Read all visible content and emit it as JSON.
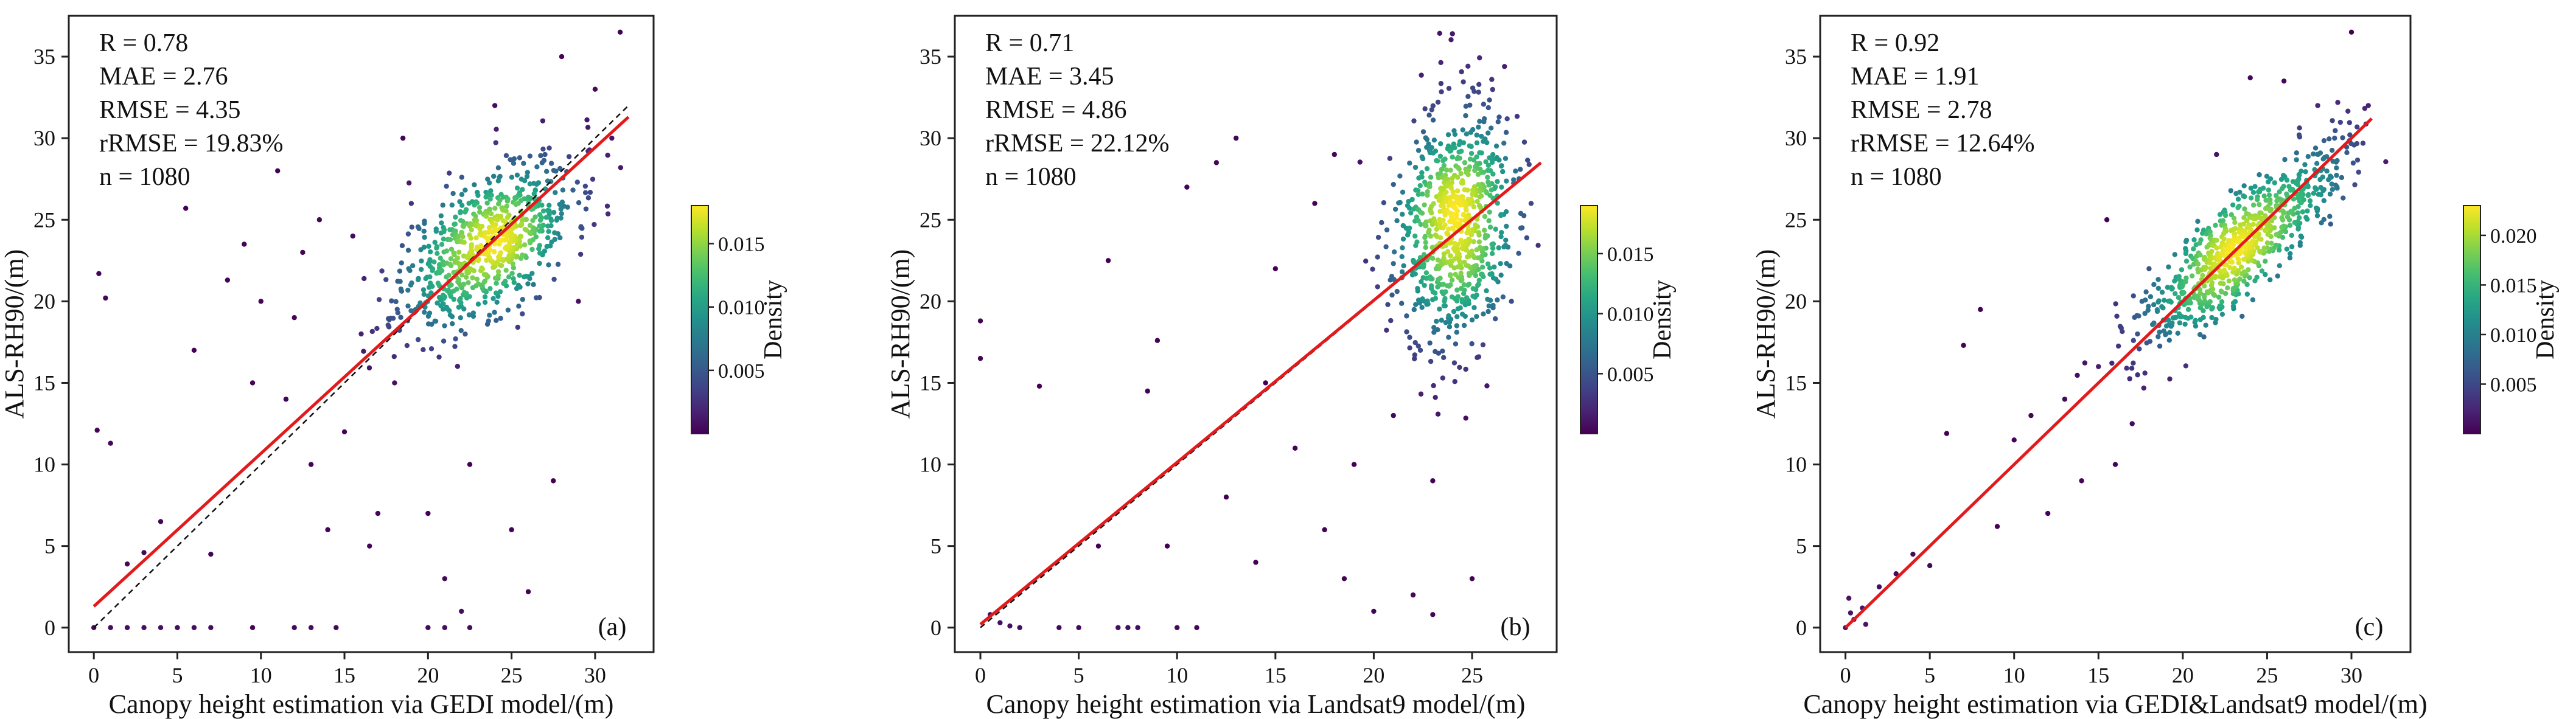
{
  "chart_data": [
    {
      "type": "scatter",
      "panel_label": "(a)",
      "xlabel": "Canopy height estimation via GEDI model/(m)",
      "ylabel": "ALS-RH90/(m)",
      "xlim": [
        -1.5,
        33.5
      ],
      "ylim": [
        -1.5,
        37.5
      ],
      "xticks": [
        0,
        5,
        10,
        15,
        20,
        25,
        30
      ],
      "yticks": [
        0,
        5,
        10,
        15,
        20,
        25,
        30,
        35
      ],
      "stats": [
        "R = 0.78",
        "MAE = 2.76",
        "RMSE = 4.35",
        "rRMSE = 19.83%",
        "n = 1080"
      ],
      "fit_line": {
        "x": [
          0,
          32
        ],
        "y": [
          1.3,
          31.3
        ],
        "color": "#e31a1c"
      },
      "one_to_one_line": {
        "x": [
          0,
          32
        ],
        "y": [
          0,
          32
        ],
        "style": "dashed"
      },
      "cluster": {
        "center": [
          23.5,
          23.5
        ],
        "spread": [
          2.6,
          2.6
        ],
        "corr": 0.55
      },
      "colorbar": {
        "label": "Density",
        "ticks": [
          0.005,
          0.01,
          0.015
        ],
        "tick_labels": [
          "0.005",
          "0.010",
          "0.015"
        ],
        "min": 0.0,
        "max": 0.018
      },
      "sample_points": [
        [
          0,
          0
        ],
        [
          1,
          0
        ],
        [
          2,
          0
        ],
        [
          3,
          0
        ],
        [
          4,
          0
        ],
        [
          5,
          0
        ],
        [
          6,
          0
        ],
        [
          7,
          0
        ],
        [
          9.5,
          0
        ],
        [
          12,
          0
        ],
        [
          13,
          0
        ],
        [
          14.5,
          0
        ],
        [
          20,
          0
        ],
        [
          21,
          0
        ],
        [
          22.5,
          0
        ],
        [
          0.2,
          12.1
        ],
        [
          1,
          11.3
        ],
        [
          0.3,
          21.7
        ],
        [
          0.7,
          20.2
        ],
        [
          2,
          3.9
        ],
        [
          3,
          4.6
        ],
        [
          4,
          6.5
        ],
        [
          5.5,
          25.7
        ],
        [
          6,
          17
        ],
        [
          7,
          4.5
        ],
        [
          8,
          21.3
        ],
        [
          9,
          23.5
        ],
        [
          9.5,
          15
        ],
        [
          10,
          20
        ],
        [
          11,
          28
        ],
        [
          11.5,
          14
        ],
        [
          12,
          19
        ],
        [
          12.5,
          23
        ],
        [
          13,
          10
        ],
        [
          13.5,
          25
        ],
        [
          14,
          6
        ],
        [
          15,
          12
        ],
        [
          15.5,
          24
        ],
        [
          16,
          18
        ],
        [
          16.5,
          5
        ],
        [
          17,
          7
        ],
        [
          18,
          15
        ],
        [
          18.5,
          30
        ],
        [
          19,
          26
        ],
        [
          20,
          7
        ],
        [
          21,
          3
        ],
        [
          22,
          1
        ],
        [
          22.5,
          10
        ],
        [
          24,
          32
        ],
        [
          25,
          6
        ],
        [
          26,
          2.2
        ],
        [
          27,
          29
        ],
        [
          27.5,
          9
        ],
        [
          28,
          35
        ],
        [
          29,
          20
        ],
        [
          30,
          33
        ],
        [
          31,
          30
        ],
        [
          31.5,
          36.5
        ]
      ],
      "n_cluster": 720,
      "seed": 11
    },
    {
      "type": "scatter",
      "panel_label": "(b)",
      "xlabel": "Canopy height estimation via Landsat9 model/(m)",
      "ylabel": "ALS-RH90/(m)",
      "xlim": [
        -1.3,
        29.3
      ],
      "ylim": [
        -1.5,
        37.5
      ],
      "xticks": [
        0,
        5,
        10,
        15,
        20,
        25
      ],
      "yticks": [
        0,
        5,
        10,
        15,
        20,
        25,
        30,
        35
      ],
      "stats": [
        "R = 0.71",
        "MAE = 3.45",
        "RMSE = 4.86",
        "rRMSE = 22.12%",
        "n = 1080"
      ],
      "fit_line": {
        "x": [
          0,
          28.5
        ],
        "y": [
          0.2,
          28.5
        ],
        "color": "#e31a1c"
      },
      "one_to_one_line": {
        "x": [
          0,
          28.5
        ],
        "y": [
          0,
          28.5
        ],
        "style": "dashed"
      },
      "cluster": {
        "center": [
          24,
          24.5
        ],
        "spread": [
          1.5,
          3.8
        ],
        "corr": 0.15
      },
      "colorbar": {
        "label": "Density",
        "ticks": [
          0.005,
          0.01,
          0.015
        ],
        "tick_labels": [
          "0.005",
          "0.010",
          "0.015"
        ],
        "min": 0.0,
        "max": 0.019
      },
      "sample_points": [
        [
          0,
          18.8
        ],
        [
          0,
          16.5
        ],
        [
          0.5,
          0.8
        ],
        [
          1,
          0.3
        ],
        [
          1.5,
          0.1
        ],
        [
          2,
          0
        ],
        [
          3,
          14.8
        ],
        [
          4,
          0
        ],
        [
          5,
          0
        ],
        [
          6,
          5
        ],
        [
          6.5,
          22.5
        ],
        [
          7,
          0
        ],
        [
          7.5,
          0
        ],
        [
          8,
          0
        ],
        [
          8.5,
          14.5
        ],
        [
          9,
          17.6
        ],
        [
          9.5,
          5
        ],
        [
          10,
          0
        ],
        [
          10.5,
          27
        ],
        [
          11,
          0
        ],
        [
          12,
          28.5
        ],
        [
          12.5,
          8
        ],
        [
          13,
          30
        ],
        [
          14,
          4
        ],
        [
          14.5,
          15
        ],
        [
          15,
          22
        ],
        [
          16,
          11
        ],
        [
          17,
          26
        ],
        [
          17.5,
          6
        ],
        [
          18,
          29
        ],
        [
          18.5,
          3
        ],
        [
          19,
          10
        ],
        [
          20,
          1
        ],
        [
          21,
          13
        ],
        [
          22,
          2
        ],
        [
          23,
          0.8
        ],
        [
          23,
          9
        ],
        [
          24,
          36.4
        ],
        [
          25,
          3
        ],
        [
          26,
          33.6
        ],
        [
          27,
          20
        ],
        [
          28,
          26
        ]
      ],
      "n_cluster": 760,
      "seed": 23
    },
    {
      "type": "scatter",
      "panel_label": "(c)",
      "xlabel": "Canopy height estimation via GEDI&Landsat9 model/(m)",
      "ylabel": "ALS-RH90/(m)",
      "xlim": [
        -1.5,
        33.5
      ],
      "ylim": [
        -1.5,
        37.5
      ],
      "xticks": [
        0,
        5,
        10,
        15,
        20,
        25,
        30
      ],
      "yticks": [
        0,
        5,
        10,
        15,
        20,
        25,
        30,
        35
      ],
      "stats": [
        "R = 0.92",
        "MAE = 1.91",
        "RMSE = 2.78",
        "rRMSE = 12.64%",
        "n = 1080"
      ],
      "fit_line": {
        "x": [
          0,
          31.2
        ],
        "y": [
          0,
          31.2
        ],
        "color": "#e31a1c"
      },
      "one_to_one_line": {
        "x": [
          0,
          31.2
        ],
        "y": [
          0,
          31.2
        ],
        "style": "dashed"
      },
      "cluster": {
        "center": [
          23.5,
          23.5
        ],
        "spread": [
          3.0,
          3.0
        ],
        "corr": 0.85
      },
      "colorbar": {
        "label": "Density",
        "ticks": [
          0.005,
          0.01,
          0.015,
          0.02
        ],
        "tick_labels": [
          "0.005",
          "0.010",
          "0.015",
          "0.020"
        ],
        "min": 0.0,
        "max": 0.023
      },
      "sample_points": [
        [
          0,
          0
        ],
        [
          0.2,
          1.8
        ],
        [
          0.5,
          0.5
        ],
        [
          1,
          1.2
        ],
        [
          1.2,
          0.2
        ],
        [
          0.3,
          0.9
        ],
        [
          2,
          2.5
        ],
        [
          3,
          3.3
        ],
        [
          4,
          4.5
        ],
        [
          5,
          3.8
        ],
        [
          6,
          11.9
        ],
        [
          7,
          17.3
        ],
        [
          8,
          19.5
        ],
        [
          9,
          6.2
        ],
        [
          10,
          11.5
        ],
        [
          11,
          13
        ],
        [
          12,
          7
        ],
        [
          13,
          14
        ],
        [
          14,
          9
        ],
        [
          15,
          16
        ],
        [
          15.5,
          25
        ],
        [
          16,
          10
        ],
        [
          17,
          12.5
        ],
        [
          18,
          22
        ],
        [
          19,
          18
        ],
        [
          20,
          21
        ],
        [
          22,
          29
        ],
        [
          24,
          33.7
        ],
        [
          26,
          33.5
        ],
        [
          27,
          24
        ],
        [
          28,
          32
        ],
        [
          29,
          30
        ],
        [
          30,
          36.5
        ],
        [
          31,
          32
        ]
      ],
      "n_cluster": 760,
      "seed": 37
    }
  ]
}
